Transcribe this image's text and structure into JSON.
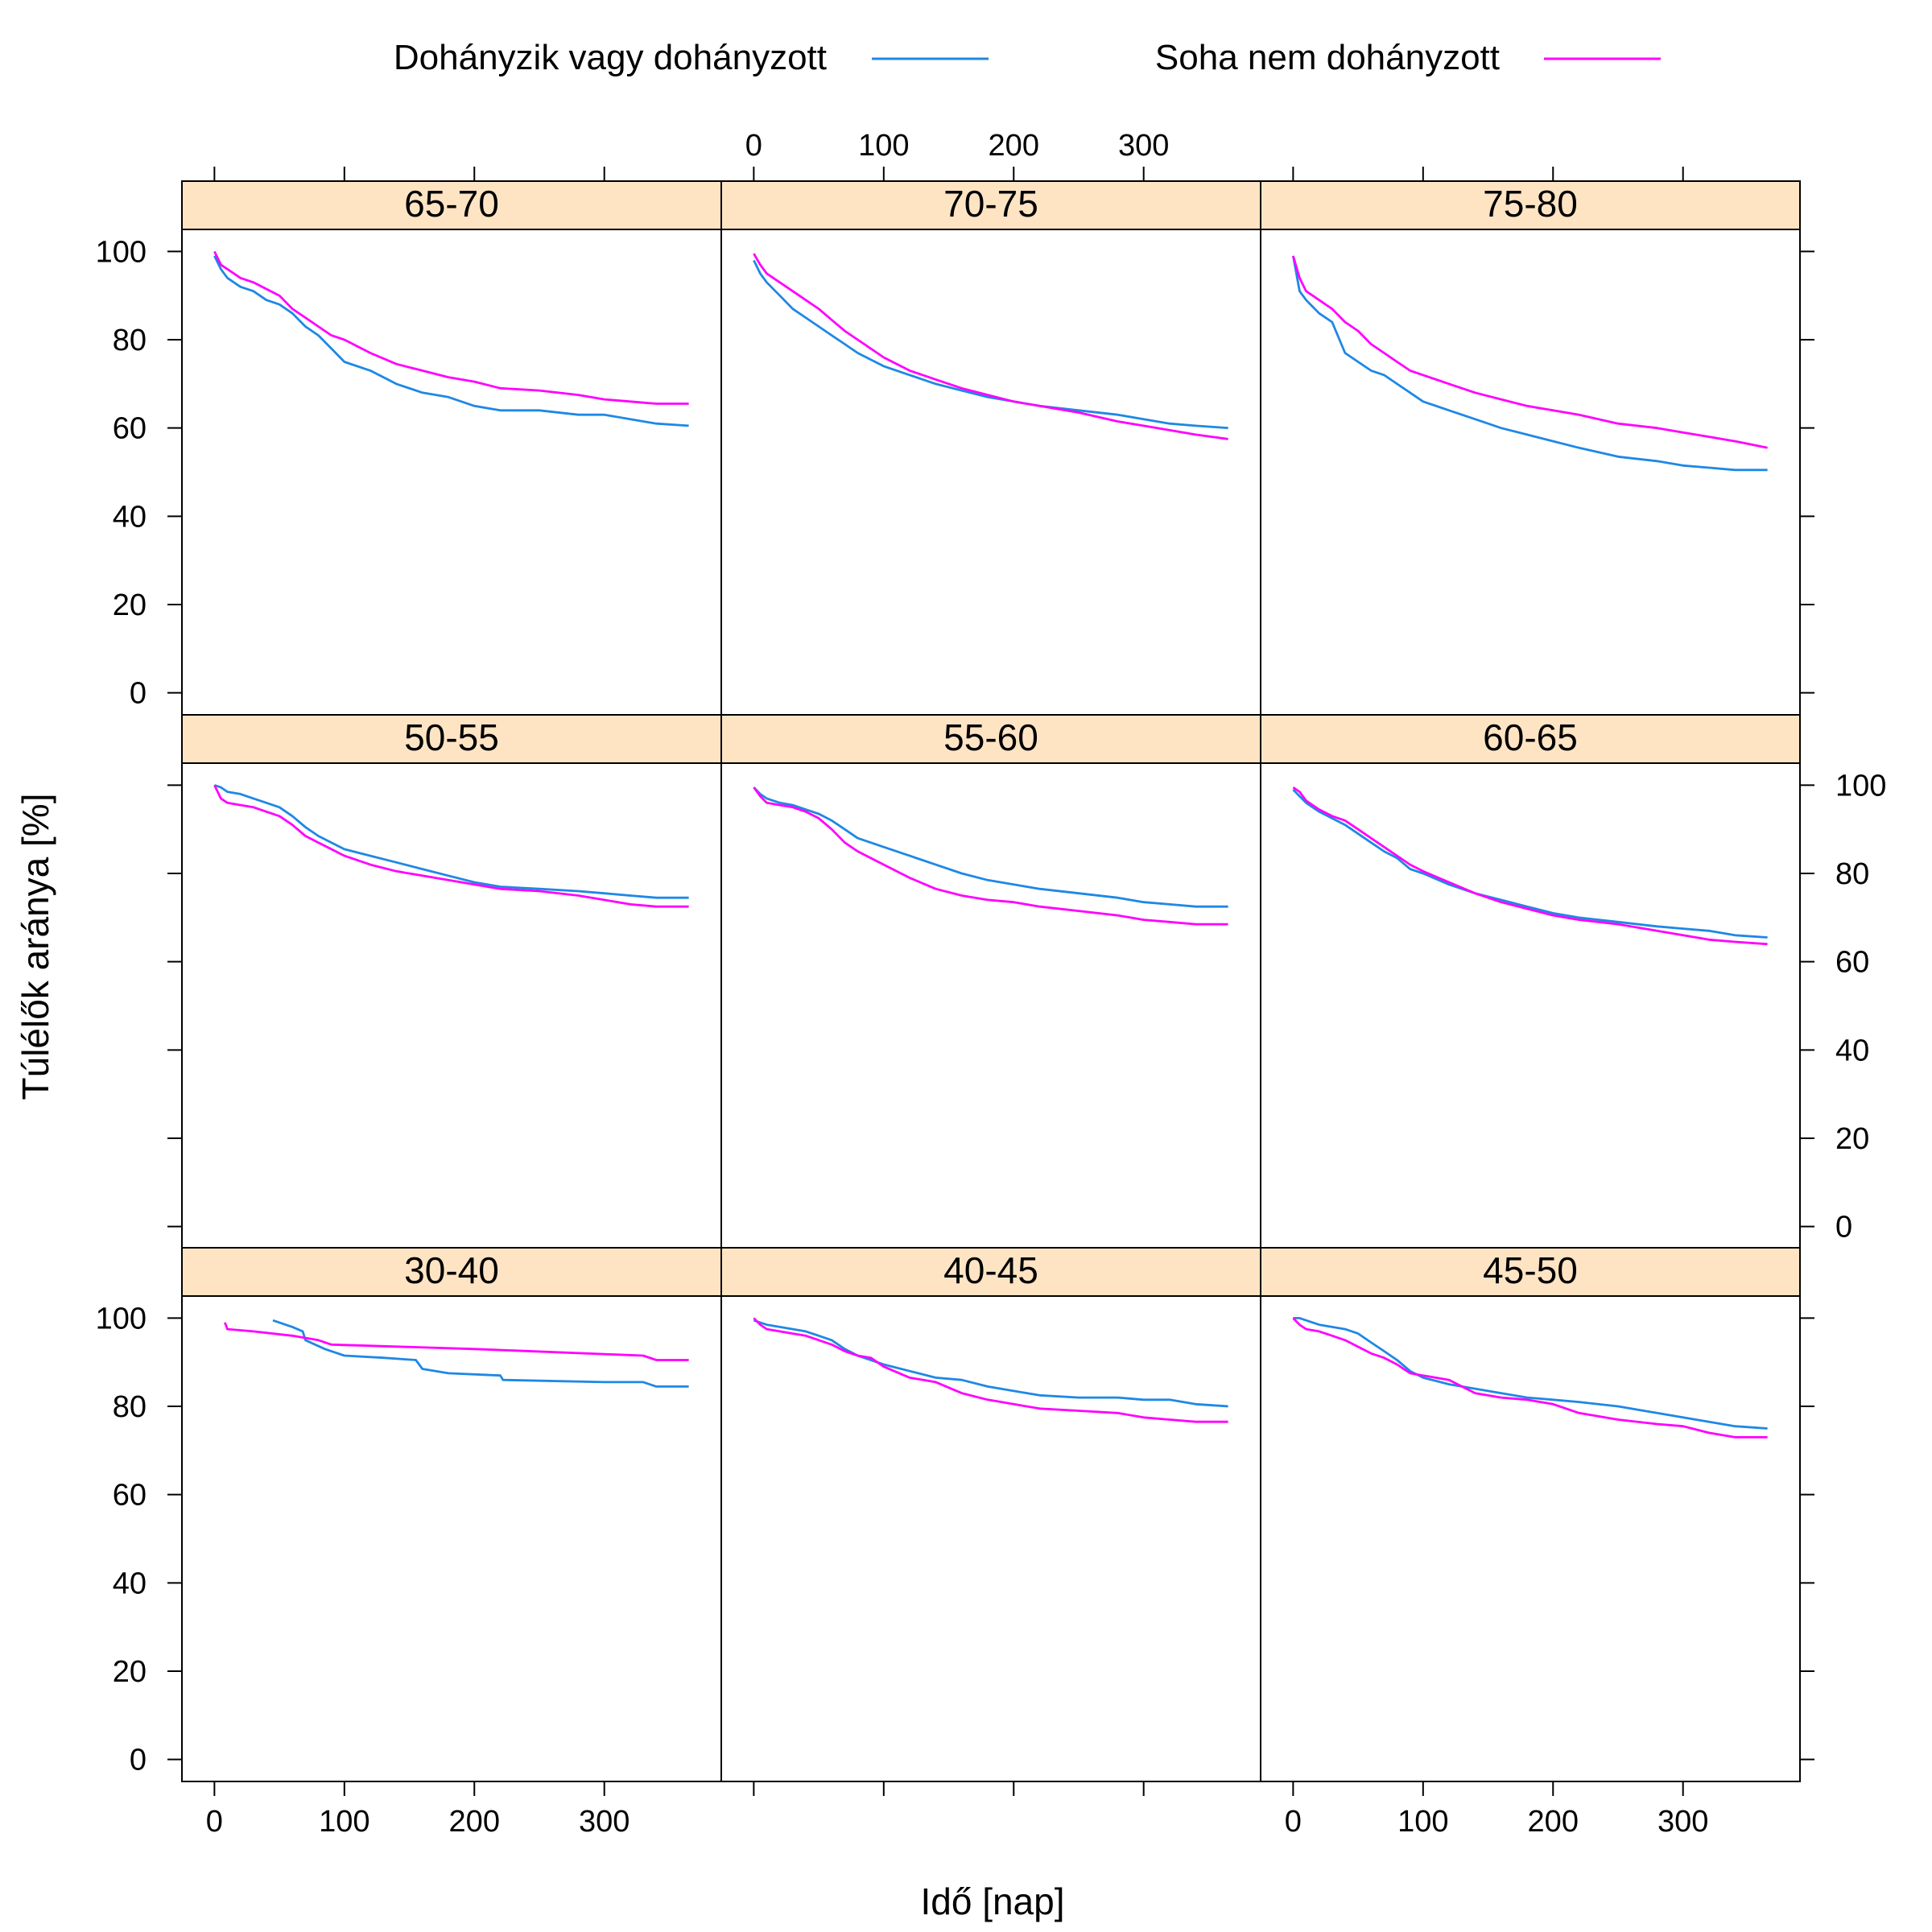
{
  "legend": {
    "items": [
      {
        "label": "Dohányzik vagy dohányzott",
        "color": "#1E88E5"
      },
      {
        "label": "Soha nem dohányzott",
        "color": "#FF00FF"
      }
    ]
  },
  "chart_data": {
    "type": "line",
    "xlabel": "Idő [nap]",
    "ylabel": "Túlélők aránya [%]",
    "xlim": [
      -25,
      390
    ],
    "ylim": [
      -5,
      105
    ],
    "xticks": [
      0,
      100,
      200,
      300
    ],
    "yticks": [
      0,
      20,
      40,
      60,
      80,
      100
    ],
    "strip_color": "#FFE4C4",
    "series_names": [
      "Dohányzik vagy dohányzott",
      "Soha nem dohányzott"
    ],
    "series_colors": [
      "#1E88E5",
      "#FF00FF"
    ],
    "panels": [
      {
        "label": "65-70",
        "row": 0,
        "col": 0,
        "series": [
          {
            "x": [
              0,
              5,
              10,
              20,
              30,
              40,
              50,
              60,
              70,
              80,
              90,
              100,
              120,
              140,
              160,
              180,
              200,
              220,
              250,
              280,
              300,
              320,
              340,
              365
            ],
            "y": [
              99,
              96,
              94,
              92,
              91,
              89,
              88,
              86,
              83,
              81,
              78,
              75,
              73,
              70,
              68,
              67,
              65,
              64,
              64,
              63,
              63,
              62,
              61,
              60.5
            ]
          },
          {
            "x": [
              0,
              5,
              10,
              20,
              30,
              40,
              50,
              60,
              70,
              80,
              90,
              100,
              120,
              140,
              160,
              180,
              200,
              220,
              250,
              280,
              300,
              320,
              340,
              365
            ],
            "y": [
              100,
              97,
              96,
              94,
              93,
              91.5,
              90,
              87,
              85,
              83,
              81,
              80,
              77,
              74.5,
              73,
              71.5,
              70.5,
              69,
              68.5,
              67.5,
              66.5,
              66,
              65.5,
              65.5
            ]
          }
        ]
      },
      {
        "label": "70-75",
        "row": 0,
        "col": 1,
        "series": [
          {
            "x": [
              0,
              5,
              10,
              20,
              30,
              40,
              50,
              60,
              70,
              80,
              90,
              100,
              120,
              140,
              160,
              180,
              200,
              220,
              250,
              280,
              300,
              320,
              340,
              365
            ],
            "y": [
              98,
              95,
              93,
              90,
              87,
              85,
              83,
              81,
              79,
              77,
              75.5,
              74,
              72,
              70,
              68.5,
              67,
              66,
              65,
              64,
              63,
              62,
              61,
              60.5,
              60
            ]
          },
          {
            "x": [
              0,
              5,
              10,
              20,
              30,
              40,
              50,
              60,
              70,
              80,
              90,
              100,
              120,
              140,
              160,
              180,
              200,
              220,
              250,
              280,
              300,
              320,
              340,
              365
            ],
            "y": [
              99.5,
              97,
              95,
              93,
              91,
              89,
              87,
              84.5,
              82,
              80,
              78,
              76,
              73,
              71,
              69,
              67.5,
              66,
              65,
              63.5,
              61.5,
              60.5,
              59.5,
              58.5,
              57.5
            ]
          }
        ]
      },
      {
        "label": "75-80",
        "row": 0,
        "col": 2,
        "series": [
          {
            "x": [
              0,
              5,
              10,
              20,
              30,
              40,
              50,
              60,
              70,
              80,
              90,
              100,
              120,
              140,
              160,
              180,
              200,
              220,
              250,
              280,
              300,
              320,
              340,
              365
            ],
            "y": [
              99,
              91,
              89,
              86,
              84,
              77,
              75,
              73,
              72,
              70,
              68,
              66,
              64,
              62,
              60,
              58.5,
              57,
              55.5,
              53.5,
              52.5,
              51.5,
              51,
              50.5,
              50.5
            ]
          },
          {
            "x": [
              0,
              5,
              10,
              20,
              30,
              40,
              50,
              60,
              70,
              80,
              90,
              100,
              120,
              140,
              160,
              180,
              200,
              220,
              250,
              280,
              300,
              320,
              340,
              365
            ],
            "y": [
              99,
              94,
              91,
              89,
              87,
              84,
              82,
              79,
              77,
              75,
              73,
              72,
              70,
              68,
              66.5,
              65,
              64,
              63,
              61,
              60,
              59,
              58,
              57,
              55.5
            ]
          }
        ]
      },
      {
        "label": "50-55",
        "row": 1,
        "col": 0,
        "series": [
          {
            "x": [
              0,
              5,
              10,
              20,
              30,
              40,
              50,
              60,
              70,
              80,
              90,
              100,
              120,
              140,
              160,
              180,
              200,
              220,
              250,
              280,
              300,
              320,
              340,
              365
            ],
            "y": [
              100,
              99.5,
              98.5,
              98,
              97,
              96,
              95,
              93,
              90.5,
              88.5,
              87,
              85.5,
              84,
              82.5,
              81,
              79.5,
              78,
              77,
              76.5,
              76,
              75.5,
              75,
              74.5,
              74.5
            ]
          },
          {
            "x": [
              0,
              5,
              10,
              20,
              30,
              40,
              50,
              60,
              70,
              80,
              90,
              100,
              120,
              140,
              160,
              180,
              200,
              220,
              250,
              280,
              300,
              320,
              340,
              365
            ],
            "y": [
              100,
              97,
              96,
              95.5,
              95,
              94,
              93,
              91,
              88.5,
              87,
              85.5,
              84,
              82,
              80.5,
              79.5,
              78.5,
              77.5,
              76.5,
              76,
              75,
              74,
              73,
              72.5,
              72.5
            ]
          }
        ]
      },
      {
        "label": "55-60",
        "row": 1,
        "col": 1,
        "series": [
          {
            "x": [
              0,
              5,
              10,
              20,
              30,
              40,
              50,
              60,
              70,
              80,
              90,
              100,
              120,
              140,
              160,
              180,
              200,
              220,
              250,
              280,
              300,
              320,
              340,
              365
            ],
            "y": [
              99.5,
              98,
              97,
              96,
              95.5,
              94.5,
              93.5,
              92,
              90,
              88,
              87,
              86,
              84,
              82,
              80,
              78.5,
              77.5,
              76.5,
              75.5,
              74.5,
              73.5,
              73,
              72.5,
              72.5
            ]
          },
          {
            "x": [
              0,
              5,
              10,
              20,
              30,
              40,
              50,
              60,
              70,
              80,
              90,
              100,
              120,
              140,
              160,
              180,
              200,
              220,
              250,
              280,
              300,
              320,
              340,
              365
            ],
            "y": [
              99.5,
              97.5,
              96,
              95.5,
              95,
              94,
              92.5,
              90,
              87,
              85,
              83.5,
              82,
              79,
              76.5,
              75,
              74,
              73.5,
              72.5,
              71.5,
              70.5,
              69.5,
              69,
              68.5,
              68.5
            ]
          }
        ]
      },
      {
        "label": "60-65",
        "row": 1,
        "col": 2,
        "series": [
          {
            "x": [
              0,
              5,
              10,
              20,
              30,
              40,
              50,
              60,
              70,
              80,
              90,
              100,
              120,
              140,
              160,
              180,
              200,
              220,
              250,
              280,
              300,
              320,
              340,
              365
            ],
            "y": [
              99,
              97.5,
              96,
              94,
              92.5,
              91,
              89,
              87,
              85,
              83.5,
              81,
              80,
              77.5,
              75.5,
              74,
              72.5,
              71,
              70,
              69,
              68,
              67.5,
              67,
              66,
              65.5
            ]
          },
          {
            "x": [
              0,
              5,
              10,
              20,
              30,
              40,
              50,
              60,
              70,
              80,
              90,
              100,
              120,
              140,
              160,
              180,
              200,
              220,
              250,
              280,
              300,
              320,
              340,
              365
            ],
            "y": [
              99.5,
              98.5,
              96.5,
              94.5,
              93,
              92,
              90,
              88,
              86,
              84,
              82,
              80.5,
              78,
              75.5,
              73.5,
              72,
              70.5,
              69.5,
              68.5,
              67,
              66,
              65,
              64.5,
              64
            ]
          }
        ]
      },
      {
        "label": "30-40",
        "row": 2,
        "col": 0,
        "series": [
          {
            "x": [
              45,
              60,
              68,
              70,
              85,
              100,
              130,
              155,
              160,
              180,
              220,
              222,
              300,
              330,
              340,
              365
            ],
            "y": [
              99.5,
              98,
              97,
              95,
              93,
              91.5,
              91,
              90.5,
              88.5,
              87.5,
              87,
              86,
              85.5,
              85.5,
              84.5,
              84.5
            ]
          },
          {
            "x": [
              8,
              10,
              30,
              60,
              80,
              90,
              200,
              330,
              340,
              365
            ],
            "y": [
              99,
              97.5,
              97,
              96,
              95,
              94,
              93,
              91.5,
              90.5,
              90.5
            ]
          }
        ]
      },
      {
        "label": "40-45",
        "row": 2,
        "col": 1,
        "series": [
          {
            "x": [
              0,
              5,
              10,
              20,
              30,
              40,
              50,
              60,
              70,
              80,
              90,
              100,
              120,
              140,
              160,
              180,
              200,
              220,
              250,
              280,
              300,
              320,
              340,
              365
            ],
            "y": [
              99.5,
              99,
              98.5,
              98,
              97.5,
              97,
              96,
              95,
              93,
              91.5,
              90.5,
              89.5,
              88,
              86.5,
              86,
              84.5,
              83.5,
              82.5,
              82,
              82,
              81.5,
              81.5,
              80.5,
              80
            ]
          },
          {
            "x": [
              0,
              5,
              10,
              20,
              30,
              40,
              50,
              60,
              70,
              80,
              90,
              100,
              120,
              140,
              160,
              180,
              200,
              220,
              250,
              280,
              300,
              320,
              340,
              365
            ],
            "y": [
              100,
              98.5,
              97.5,
              97,
              96.5,
              96,
              95,
              94,
              92.5,
              91.5,
              91,
              89,
              86.5,
              85.5,
              83,
              81.5,
              80.5,
              79.5,
              79,
              78.5,
              77.5,
              77,
              76.5,
              76.5
            ]
          }
        ]
      },
      {
        "label": "45-50",
        "row": 2,
        "col": 2,
        "series": [
          {
            "x": [
              0,
              5,
              10,
              20,
              30,
              40,
              50,
              60,
              70,
              80,
              90,
              100,
              120,
              140,
              160,
              180,
              200,
              220,
              250,
              280,
              300,
              320,
              340,
              365
            ],
            "y": [
              100,
              100,
              99.5,
              98.5,
              98,
              97.5,
              96.5,
              94.5,
              92.5,
              90.5,
              88,
              86.5,
              85,
              84,
              83,
              82,
              81.5,
              81,
              80,
              78.5,
              77.5,
              76.5,
              75.5,
              75
            ]
          },
          {
            "x": [
              0,
              5,
              10,
              20,
              30,
              40,
              50,
              60,
              70,
              80,
              90,
              100,
              120,
              140,
              160,
              180,
              200,
              220,
              250,
              280,
              300,
              320,
              340,
              365
            ],
            "y": [
              100,
              98.5,
              97.5,
              97,
              96,
              95,
              93.5,
              92,
              91,
              89.5,
              87.5,
              87,
              86,
              83,
              82,
              81.5,
              80.5,
              78.5,
              77,
              76,
              75.5,
              74,
              73,
              73
            ]
          }
        ]
      }
    ]
  }
}
